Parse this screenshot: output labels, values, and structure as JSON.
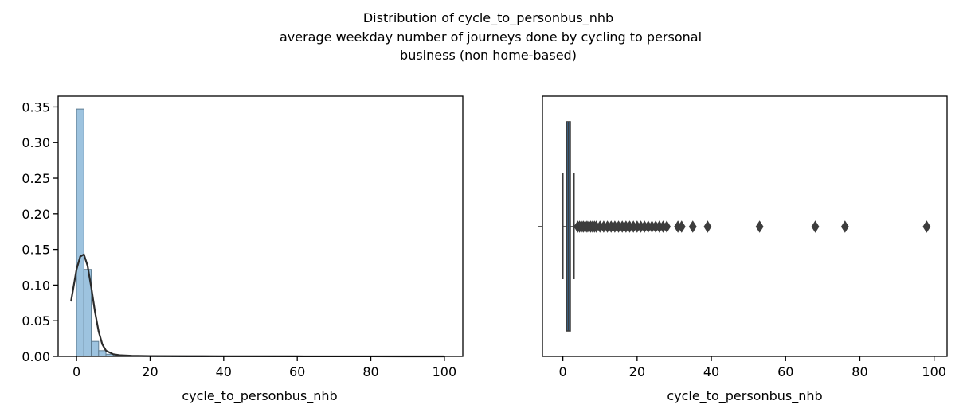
{
  "figure": {
    "title_lines": [
      "Distribution of cycle_to_personbus_nhb",
      "average weekday number of journeys done by cycling to personal",
      "business (non home-based)"
    ]
  },
  "colors": {
    "hist_fill": "#9dc3df",
    "hist_stroke": "#5f7d92",
    "kde_line": "#2b2b2b",
    "box_fill": "#3a6d99",
    "box_edge": "#3d3d3d",
    "flier": "#3d3d3d"
  },
  "chart_data": [
    {
      "type": "bar",
      "subtype": "histogram-with-kde",
      "xlabel": "cycle_to_personbus_nhb",
      "ylabel": "",
      "xlim": [
        -5,
        105
      ],
      "ylim": [
        0,
        0.365
      ],
      "xticks": [
        0,
        20,
        40,
        60,
        80,
        100
      ],
      "yticks": [
        0.0,
        0.05,
        0.1,
        0.15,
        0.2,
        0.25,
        0.3,
        0.35
      ],
      "ytick_labels": [
        "0.00",
        "0.05",
        "0.10",
        "0.15",
        "0.20",
        "0.25",
        "0.30",
        "0.35"
      ],
      "bin_width": 2,
      "bins": [
        {
          "start": 0,
          "density": 0.347
        },
        {
          "start": 2,
          "density": 0.122
        },
        {
          "start": 4,
          "density": 0.021
        },
        {
          "start": 6,
          "density": 0.008
        },
        {
          "start": 8,
          "density": 0.003
        },
        {
          "start": 10,
          "density": 0.002
        },
        {
          "start": 12,
          "density": 0.001
        },
        {
          "start": 14,
          "density": 0.0005
        },
        {
          "start": 16,
          "density": 0.0004
        },
        {
          "start": 18,
          "density": 0.0003
        },
        {
          "start": 20,
          "density": 0.0002
        },
        {
          "start": 22,
          "density": 0.0002
        },
        {
          "start": 24,
          "density": 0.0002
        },
        {
          "start": 26,
          "density": 0.0001
        },
        {
          "start": 28,
          "density": 0.0001
        },
        {
          "start": 30,
          "density": 0.0001
        },
        {
          "start": 32,
          "density": 0.0001
        },
        {
          "start": 34,
          "density": 0.0001
        },
        {
          "start": 38,
          "density": 0.0001
        },
        {
          "start": 52,
          "density": 0.0001
        },
        {
          "start": 66,
          "density": 0.0001
        },
        {
          "start": 76,
          "density": 0.0001
        },
        {
          "start": 96,
          "density": 0.0001
        }
      ],
      "kde": {
        "x": [
          -1.5,
          -1,
          0,
          1,
          2,
          3,
          4,
          5,
          6,
          7,
          8,
          10,
          12,
          15,
          20,
          30,
          40,
          60,
          80,
          100
        ],
        "y": [
          0.077,
          0.092,
          0.122,
          0.14,
          0.143,
          0.127,
          0.097,
          0.063,
          0.035,
          0.017,
          0.008,
          0.003,
          0.0015,
          0.0008,
          0.0005,
          0.0003,
          0.0002,
          0.0001,
          5e-05,
          3e-05
        ]
      }
    },
    {
      "type": "box",
      "xlabel": "cycle_to_personbus_nhb",
      "xlim": [
        -5.5,
        103.5
      ],
      "xticks": [
        0,
        20,
        40,
        60,
        80,
        100
      ],
      "whisker_low": 0,
      "q1": 1,
      "median": 1.5,
      "q3": 2,
      "whisker_high": 3,
      "outliers": [
        4,
        4.5,
        5,
        5.5,
        6,
        6.5,
        7,
        7.5,
        8,
        8.5,
        9,
        10,
        11,
        12,
        13,
        14,
        15,
        16,
        17,
        18,
        19,
        20,
        21,
        22,
        23,
        24,
        25,
        26,
        27,
        28,
        31,
        32,
        35,
        39,
        53,
        68,
        76,
        98
      ]
    }
  ]
}
